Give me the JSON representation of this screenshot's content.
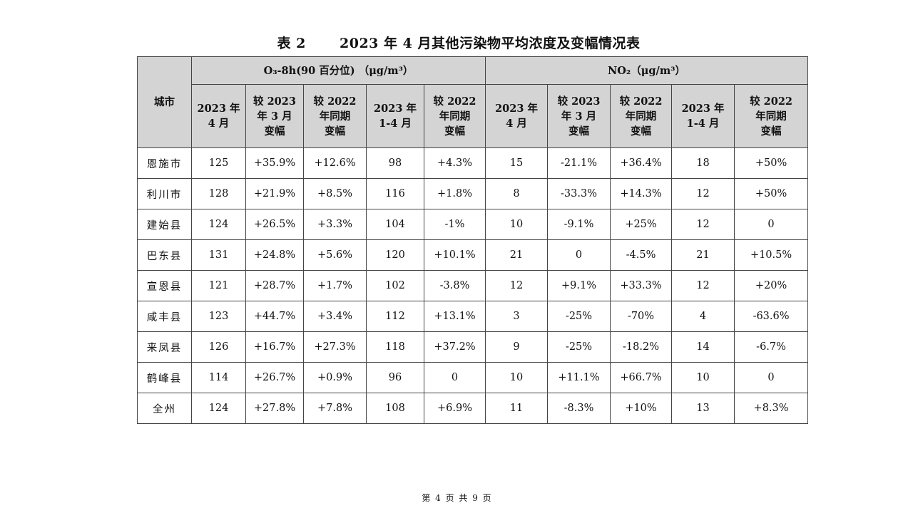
{
  "title": {
    "label": "表 2",
    "text": "2023 年 4 月其他污染物平均浓度及变幅情况表"
  },
  "header": {
    "city": "城市",
    "groups": [
      "O₃-8h(90 百分位) （μg/m³）",
      "NO₂（μg/m³）"
    ],
    "o3_cols": [
      {
        "l1": "2023 年",
        "l2": "4 月",
        "l3": ""
      },
      {
        "l1": "较 2023",
        "l2": "年 3 月",
        "l3": "变幅"
      },
      {
        "l1": "较 2022",
        "l2": "年同期",
        "l3": "变幅"
      },
      {
        "l1": "2023 年",
        "l2": "1-4 月",
        "l3": ""
      },
      {
        "l1": "较 2022",
        "l2": "年同期",
        "l3": "变幅"
      }
    ],
    "no2_cols": [
      {
        "l1": "2023 年",
        "l2": "4 月",
        "l3": ""
      },
      {
        "l1": "较 2023",
        "l2": "年 3 月",
        "l3": "变幅"
      },
      {
        "l1": "较 2022",
        "l2": "年同期",
        "l3": "变幅"
      },
      {
        "l1": "2023 年",
        "l2": "1-4 月",
        "l3": ""
      },
      {
        "l1": "较 2022",
        "l2": "年同期",
        "l3": "变幅"
      }
    ]
  },
  "rows": [
    {
      "city": "恩施市",
      "o3": [
        "125",
        "+35.9%",
        "+12.6%",
        "98",
        "+4.3%"
      ],
      "no2": [
        "15",
        "-21.1%",
        "+36.4%",
        "18",
        "+50%"
      ]
    },
    {
      "city": "利川市",
      "o3": [
        "128",
        "+21.9%",
        "+8.5%",
        "116",
        "+1.8%"
      ],
      "no2": [
        "8",
        "-33.3%",
        "+14.3%",
        "12",
        "+50%"
      ]
    },
    {
      "city": "建始县",
      "o3": [
        "124",
        "+26.5%",
        "+3.3%",
        "104",
        "-1%"
      ],
      "no2": [
        "10",
        "-9.1%",
        "+25%",
        "12",
        "0"
      ]
    },
    {
      "city": "巴东县",
      "o3": [
        "131",
        "+24.8%",
        "+5.6%",
        "120",
        "+10.1%"
      ],
      "no2": [
        "21",
        "0",
        "-4.5%",
        "21",
        "+10.5%"
      ]
    },
    {
      "city": "宣恩县",
      "o3": [
        "121",
        "+28.7%",
        "+1.7%",
        "102",
        "-3.8%"
      ],
      "no2": [
        "12",
        "+9.1%",
        "+33.3%",
        "12",
        "+20%"
      ]
    },
    {
      "city": "咸丰县",
      "o3": [
        "123",
        "+44.7%",
        "+3.4%",
        "112",
        "+13.1%"
      ],
      "no2": [
        "3",
        "-25%",
        "-70%",
        "4",
        "-63.6%"
      ]
    },
    {
      "city": "来凤县",
      "o3": [
        "126",
        "+16.7%",
        "+27.3%",
        "118",
        "+37.2%"
      ],
      "no2": [
        "9",
        "-25%",
        "-18.2%",
        "14",
        "-6.7%"
      ]
    },
    {
      "city": "鹤峰县",
      "o3": [
        "114",
        "+26.7%",
        "+0.9%",
        "96",
        "0"
      ],
      "no2": [
        "10",
        "+11.1%",
        "+66.7%",
        "10",
        "0"
      ]
    },
    {
      "city": "全州",
      "o3": [
        "124",
        "+27.8%",
        "+7.8%",
        "108",
        "+6.9%"
      ],
      "no2": [
        "11",
        "-8.3%",
        "+10%",
        "13",
        "+8.3%"
      ]
    }
  ],
  "footer": "第 4 页 共 9 页"
}
